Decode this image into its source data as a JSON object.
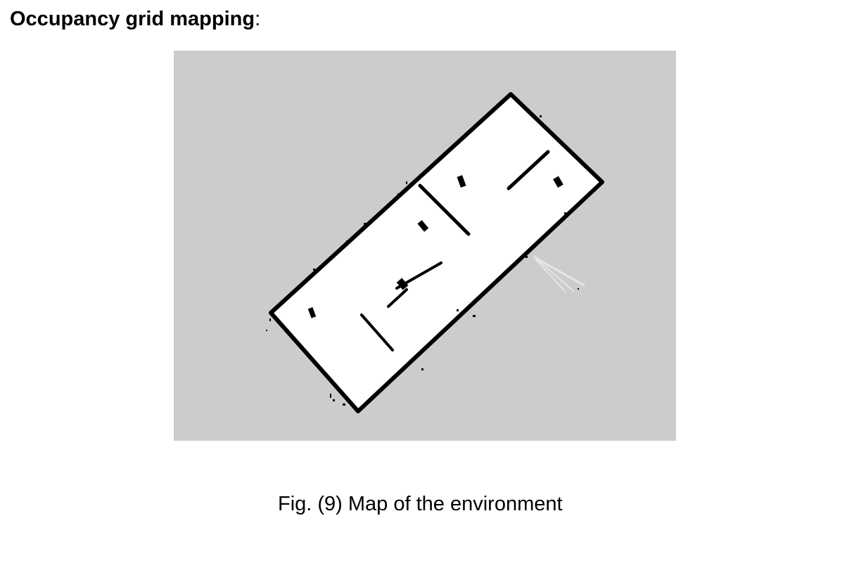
{
  "heading": {
    "title": "Occupancy grid mapping",
    "suffix": ":"
  },
  "figure": {
    "caption": "Fig. (9) Map of the environment",
    "colors": {
      "unknown": "#cccccc",
      "free": "#ffffff",
      "occupied": "#000000",
      "scan_trace": "#e4e4e4"
    }
  }
}
